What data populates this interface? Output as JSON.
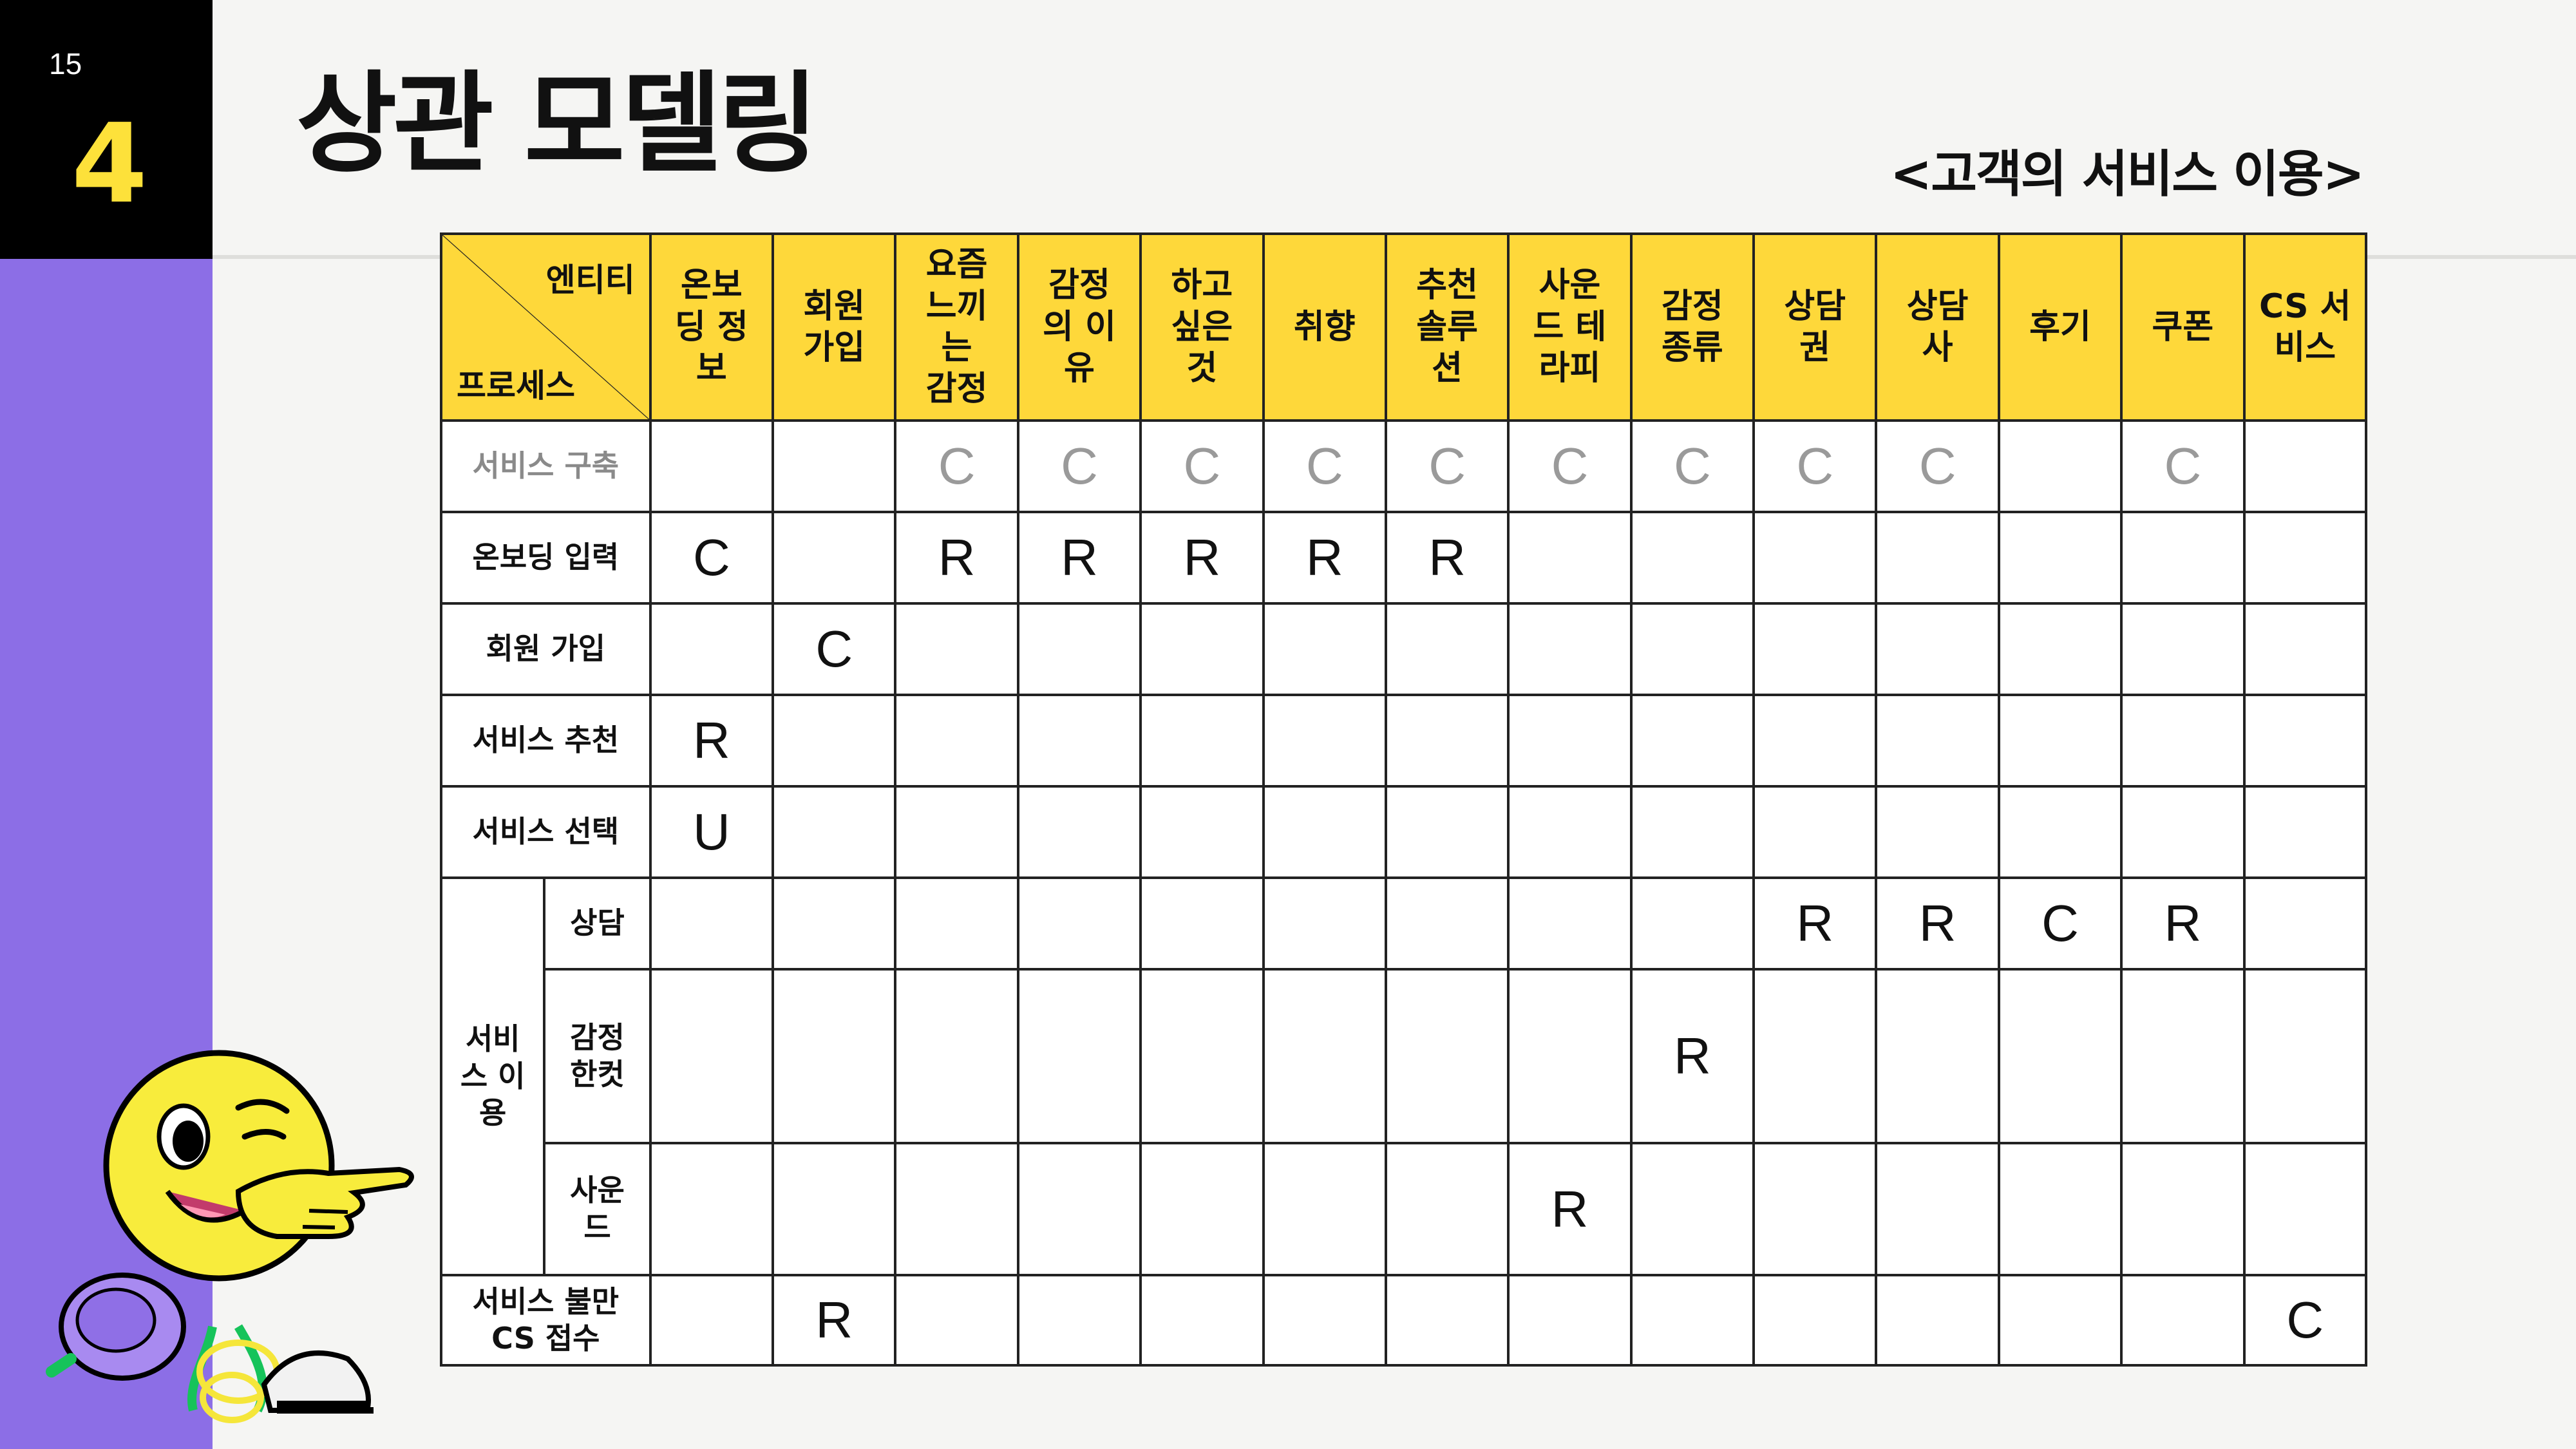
{
  "page": {
    "number": "15",
    "section": "4"
  },
  "title": "상관 모델링",
  "subtitle": "<고객의 서비스 이용>",
  "matrix": {
    "corner_top": "엔티티",
    "corner_bottom": "프로세스",
    "columns": [
      "온보딩 정보",
      "회원가입",
      "요즘느끼는감정",
      "감정의 이유",
      "하고싶은것",
      "취향",
      "추천솔루션",
      "사운드 테라피",
      "감정종류",
      "상담권",
      "상담사",
      "후기",
      "쿠폰",
      "CS 서비스"
    ],
    "column_lines": [
      [
        "온보",
        "딩 정",
        "보"
      ],
      [
        "회원",
        "가입"
      ],
      [
        "요즘",
        "느끼",
        "는",
        "감정"
      ],
      [
        "감정",
        "의 이",
        "유"
      ],
      [
        "하고",
        "싶은",
        "것"
      ],
      [
        "취향"
      ],
      [
        "추천",
        "솔루",
        "션"
      ],
      [
        "사운",
        "드 테",
        "라피"
      ],
      [
        "감정",
        "종류"
      ],
      [
        "상담",
        "권"
      ],
      [
        "상담",
        "사"
      ],
      [
        "후기"
      ],
      [
        "쿠폰"
      ],
      [
        "CS 서",
        "비스"
      ]
    ],
    "rows": [
      {
        "label": "서비스 구축",
        "muted": true,
        "cells": [
          "",
          "",
          "C",
          "C",
          "C",
          "C",
          "C",
          "C",
          "C",
          "C",
          "C",
          "",
          "C",
          ""
        ]
      },
      {
        "label": "온보딩 입력",
        "cells": [
          "C",
          "",
          "R",
          "R",
          "R",
          "R",
          "R",
          "",
          "",
          "",
          "",
          "",
          "",
          ""
        ]
      },
      {
        "label": "회원 가입",
        "cells": [
          "",
          "C",
          "",
          "",
          "",
          "",
          "",
          "",
          "",
          "",
          "",
          "",
          "",
          ""
        ]
      },
      {
        "label": "서비스 추천",
        "cells": [
          "R",
          "",
          "",
          "",
          "",
          "",
          "",
          "",
          "",
          "",
          "",
          "",
          "",
          ""
        ]
      },
      {
        "label": "서비스 선택",
        "cells": [
          "U",
          "",
          "",
          "",
          "",
          "",
          "",
          "",
          "",
          "",
          "",
          "",
          "",
          ""
        ]
      }
    ],
    "group": {
      "label_lines": [
        "서비",
        "스 이",
        "용"
      ],
      "rows": [
        {
          "label_lines": [
            "상담"
          ],
          "cells": [
            "",
            "",
            "",
            "",
            "",
            "",
            "",
            "",
            "",
            "R",
            "R",
            "C",
            "R",
            ""
          ]
        },
        {
          "label_lines": [
            "감정",
            "한컷"
          ],
          "cells": [
            "",
            "",
            "",
            "",
            "",
            "",
            "",
            "",
            "R",
            "",
            "",
            "",
            "",
            ""
          ]
        },
        {
          "label_lines": [
            "사운",
            "드"
          ],
          "cells": [
            "",
            "",
            "",
            "",
            "",
            "",
            "",
            "R",
            "",
            "",
            "",
            "",
            "",
            ""
          ]
        }
      ]
    },
    "last_row": {
      "label_lines": [
        "서비스 불만",
        "CS 접수"
      ],
      "cells": [
        "",
        "R",
        "",
        "",
        "",
        "",
        "",
        "",
        "",
        "",
        "",
        "",
        "",
        "C"
      ]
    }
  },
  "colors": {
    "accent_yellow": "#fed83a",
    "sidebar_purple": "#8c6ee6",
    "sidebar_black": "#000000",
    "number_yellow": "#fde13a"
  },
  "icons": {
    "mascot": "smiley-mascot-pointing-icon"
  }
}
